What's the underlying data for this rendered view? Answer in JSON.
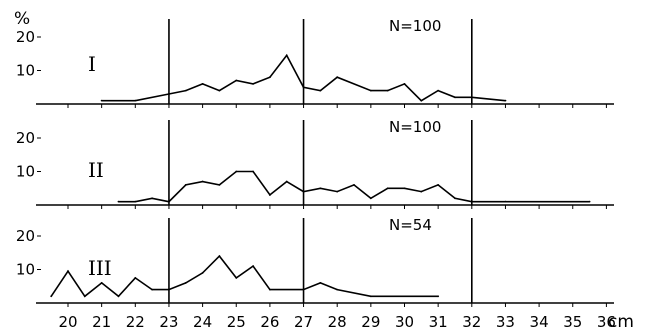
{
  "chart_data": {
    "type": "line",
    "title": "",
    "xlabel": "cm",
    "ylabel": "%",
    "xlim": [
      19,
      36
    ],
    "ylim": [
      0,
      20
    ],
    "x_ticks": [
      "20",
      "21",
      "22",
      "23",
      "24",
      "25",
      "26",
      "27",
      "28",
      "29",
      "30",
      "31",
      "32",
      "33",
      "34",
      "35",
      "36"
    ],
    "y_ticks": [
      "10",
      "20"
    ],
    "reference_lines_x": [
      23,
      27,
      32
    ],
    "panels": [
      {
        "label": "I",
        "n_label": "N=100",
        "points": [
          [
            21,
            1
          ],
          [
            22,
            1
          ],
          [
            23,
            3
          ],
          [
            23.5,
            4
          ],
          [
            24,
            6
          ],
          [
            24.5,
            4
          ],
          [
            25,
            7
          ],
          [
            25.5,
            6
          ],
          [
            26,
            8
          ],
          [
            26.5,
            14.5
          ],
          [
            27,
            5
          ],
          [
            27.5,
            4
          ],
          [
            28,
            8
          ],
          [
            29,
            4
          ],
          [
            29.5,
            4
          ],
          [
            30,
            6
          ],
          [
            30.5,
            1
          ],
          [
            31,
            4
          ],
          [
            31.5,
            2
          ],
          [
            32,
            2
          ],
          [
            33,
            1
          ]
        ]
      },
      {
        "label": "II",
        "n_label": "N=100",
        "points": [
          [
            21.5,
            1
          ],
          [
            22,
            1
          ],
          [
            22.5,
            2
          ],
          [
            23,
            1
          ],
          [
            23.5,
            6
          ],
          [
            24,
            7
          ],
          [
            24.5,
            6
          ],
          [
            25,
            10
          ],
          [
            25.5,
            10
          ],
          [
            26,
            3
          ],
          [
            26.5,
            7
          ],
          [
            27,
            4
          ],
          [
            27.5,
            5
          ],
          [
            28,
            4
          ],
          [
            28.5,
            6
          ],
          [
            29,
            2
          ],
          [
            29.5,
            5
          ],
          [
            30,
            5
          ],
          [
            30.5,
            4
          ],
          [
            31,
            6
          ],
          [
            31.5,
            2
          ],
          [
            32,
            1
          ],
          [
            33,
            1
          ],
          [
            35.5,
            1
          ]
        ]
      },
      {
        "label": "III",
        "n_label": "N=54",
        "points": [
          [
            19.5,
            2
          ],
          [
            20,
            9.5
          ],
          [
            20.5,
            2
          ],
          [
            21,
            6
          ],
          [
            21.5,
            2
          ],
          [
            22,
            7.5
          ],
          [
            22.5,
            4
          ],
          [
            23,
            4
          ],
          [
            23.5,
            6
          ],
          [
            24,
            9
          ],
          [
            24.5,
            14
          ],
          [
            25,
            7.5
          ],
          [
            25.5,
            11
          ],
          [
            26,
            4
          ],
          [
            27,
            4
          ],
          [
            27.5,
            6
          ],
          [
            28,
            4
          ],
          [
            29,
            2
          ],
          [
            31,
            2
          ]
        ]
      }
    ]
  }
}
